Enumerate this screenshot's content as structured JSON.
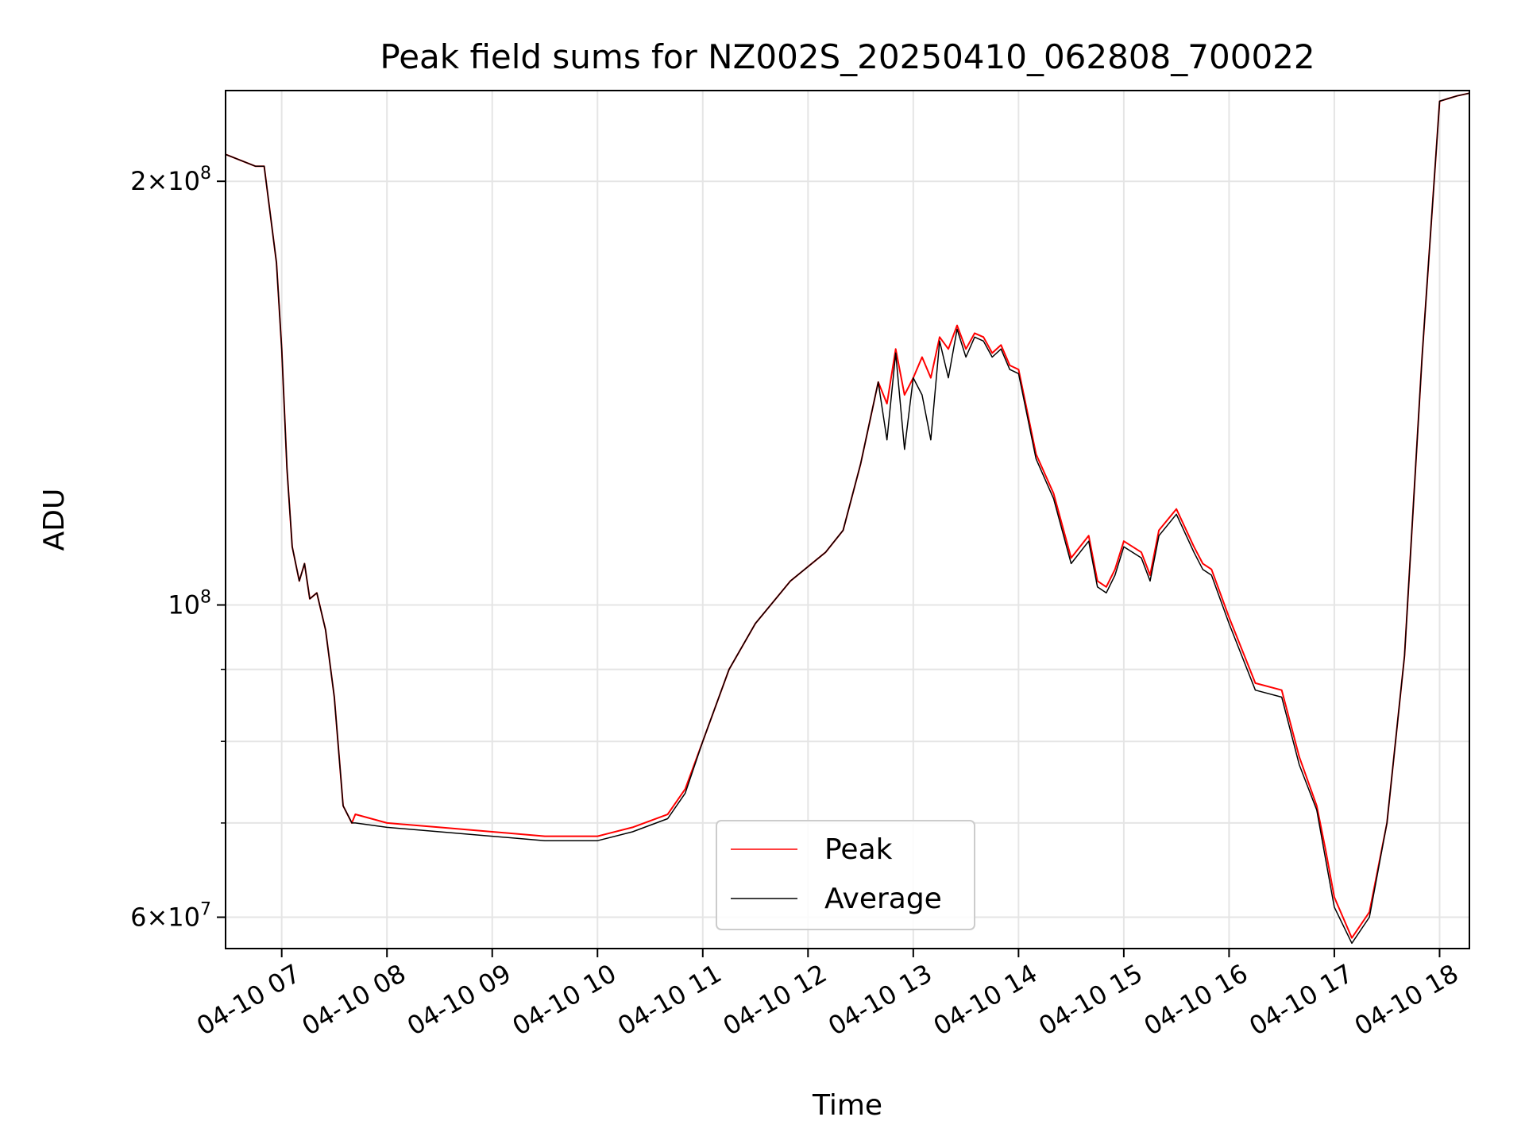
{
  "chart_data": {
    "type": "line",
    "title": "Peak field sums for NZ002S_20250410_062808_700022",
    "xlabel": "Time",
    "ylabel": "ADU",
    "y_scale": "log",
    "ylim": [
      57000000,
      232000000
    ],
    "xlim": [
      "04-10 06:28",
      "04-10 18:17"
    ],
    "grid": true,
    "legend_position": "lower-center",
    "x_ticks": [
      "04-10 07",
      "04-10 08",
      "04-10 09",
      "04-10 10",
      "04-10 11",
      "04-10 12",
      "04-10 13",
      "04-10 14",
      "04-10 15",
      "04-10 16",
      "04-10 17",
      "04-10 18"
    ],
    "y_ticks": [
      {
        "value": 60000000,
        "base": "6",
        "exp": "7"
      },
      {
        "value": 100000000,
        "base": "",
        "exp": "8"
      },
      {
        "value": 200000000,
        "base": "2",
        "exp": "8"
      }
    ],
    "y_minor_ticks": [
      70000000,
      80000000,
      90000000
    ],
    "x": [
      "04-10 06:28",
      "04-10 06:45",
      "04-10 06:50",
      "04-10 06:57",
      "04-10 07:00",
      "04-10 07:03",
      "04-10 07:06",
      "04-10 07:10",
      "04-10 07:13",
      "04-10 07:16",
      "04-10 07:20",
      "04-10 07:25",
      "04-10 07:30",
      "04-10 07:35",
      "04-10 07:40",
      "04-10 07:42",
      "04-10 08:00",
      "04-10 08:30",
      "04-10 09:00",
      "04-10 09:30",
      "04-10 10:00",
      "04-10 10:20",
      "04-10 10:40",
      "04-10 10:50",
      "04-10 11:00",
      "04-10 11:15",
      "04-10 11:30",
      "04-10 11:50",
      "04-10 12:10",
      "04-10 12:20",
      "04-10 12:30",
      "04-10 12:40",
      "04-10 12:45",
      "04-10 12:50",
      "04-10 12:55",
      "04-10 13:00",
      "04-10 13:05",
      "04-10 13:10",
      "04-10 13:15",
      "04-10 13:20",
      "04-10 13:25",
      "04-10 13:30",
      "04-10 13:35",
      "04-10 13:40",
      "04-10 13:45",
      "04-10 13:50",
      "04-10 13:55",
      "04-10 14:00",
      "04-10 14:10",
      "04-10 14:20",
      "04-10 14:30",
      "04-10 14:40",
      "04-10 14:45",
      "04-10 14:50",
      "04-10 14:55",
      "04-10 15:00",
      "04-10 15:10",
      "04-10 15:15",
      "04-10 15:20",
      "04-10 15:30",
      "04-10 15:40",
      "04-10 15:45",
      "04-10 15:50",
      "04-10 16:00",
      "04-10 16:15",
      "04-10 16:30",
      "04-10 16:40",
      "04-10 16:50",
      "04-10 16:55",
      "04-10 17:00",
      "04-10 17:10",
      "04-10 17:20",
      "04-10 17:30",
      "04-10 17:40",
      "04-10 17:50",
      "04-10 18:00",
      "04-10 18:05",
      "04-10 18:10",
      "04-10 18:17"
    ],
    "series": [
      {
        "name": "Peak",
        "color": "#ff0000",
        "values": [
          209000000,
          205000000,
          205000000,
          175000000,
          152000000,
          125000000,
          110000000,
          104000000,
          107000000,
          101000000,
          102000000,
          96000000,
          86000000,
          72000000,
          70000000,
          71000000,
          70000000,
          69500000,
          69000000,
          68500000,
          68500000,
          69500000,
          71000000,
          74000000,
          80000000,
          90000000,
          97000000,
          104000000,
          109000000,
          113000000,
          126000000,
          144000000,
          139000000,
          152000000,
          141000000,
          145000000,
          150000000,
          145000000,
          155000000,
          152000000,
          158000000,
          152000000,
          156000000,
          155000000,
          151000000,
          153000000,
          148000000,
          147000000,
          128000000,
          120000000,
          108000000,
          112000000,
          104000000,
          103000000,
          106000000,
          111000000,
          109000000,
          105000000,
          113000000,
          117000000,
          110000000,
          107000000,
          106000000,
          98000000,
          88000000,
          87000000,
          78000000,
          72000000,
          67000000,
          62000000,
          58000000,
          60500000,
          70000000,
          92000000,
          150000000,
          228000000,
          229000000,
          230000000,
          231000000
        ]
      },
      {
        "name": "Average",
        "color": "#000000",
        "values": [
          209000000,
          205000000,
          205000000,
          175000000,
          152000000,
          125000000,
          110000000,
          104000000,
          107000000,
          101000000,
          102000000,
          96000000,
          86000000,
          72000000,
          70000000,
          70000000,
          69500000,
          69000000,
          68500000,
          68000000,
          68000000,
          69000000,
          70500000,
          73500000,
          80000000,
          90000000,
          97000000,
          104000000,
          109000000,
          113000000,
          126000000,
          144000000,
          131000000,
          151000000,
          129000000,
          145000000,
          141000000,
          131000000,
          154000000,
          145000000,
          157000000,
          150000000,
          155000000,
          154000000,
          150000000,
          152000000,
          147000000,
          146000000,
          127000000,
          119000000,
          107000000,
          111000000,
          103000000,
          102000000,
          105000000,
          110000000,
          108000000,
          104000000,
          112000000,
          116000000,
          109000000,
          106000000,
          105000000,
          97000000,
          87000000,
          86000000,
          77000000,
          71500000,
          66000000,
          61000000,
          57500000,
          60000000,
          70000000,
          92000000,
          150000000,
          228000000,
          229000000,
          230000000,
          231000000
        ]
      }
    ]
  }
}
